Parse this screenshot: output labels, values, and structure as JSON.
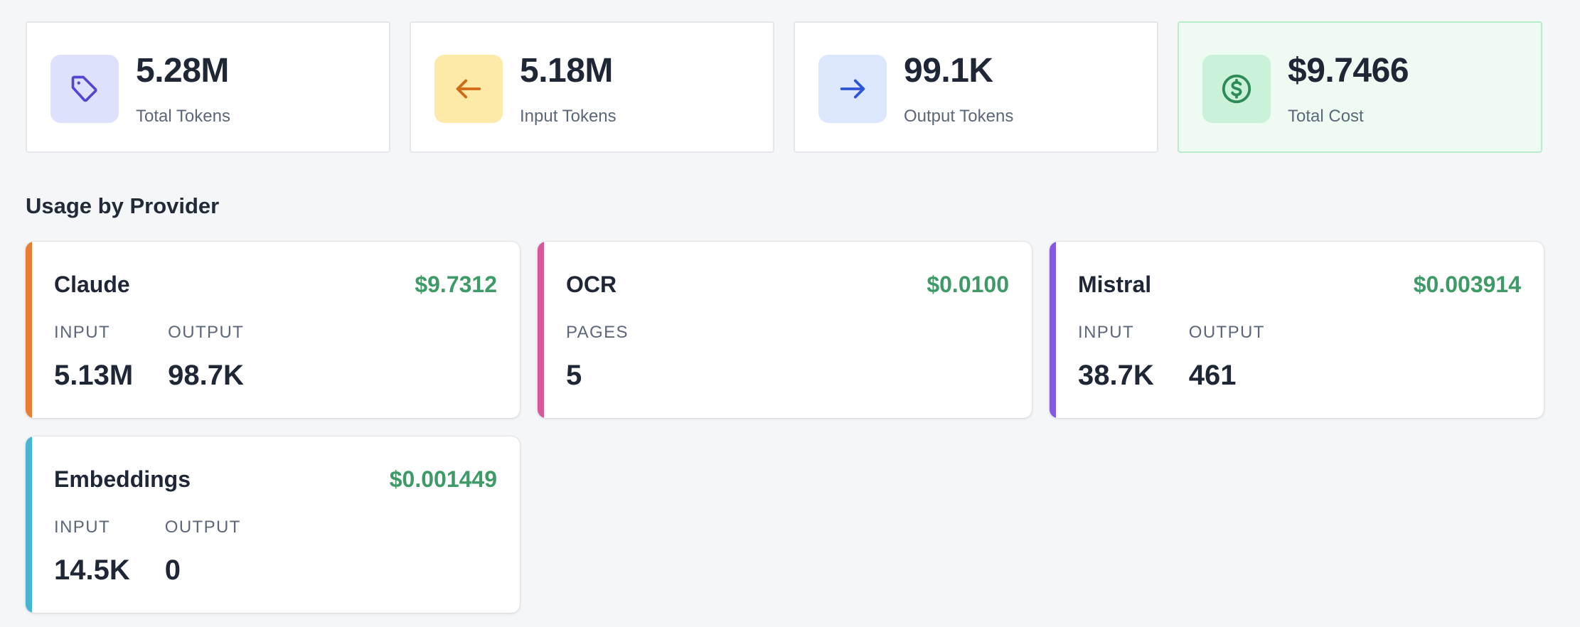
{
  "stats": [
    {
      "value": "5.28M",
      "label": "Total Tokens",
      "icon": "tag-icon",
      "icon_bg": "#dde1fb",
      "icon_color": "#5146cf"
    },
    {
      "value": "5.18M",
      "label": "Input Tokens",
      "icon": "arrow-left-icon",
      "icon_bg": "#fde9a8",
      "icon_color": "#d16a17"
    },
    {
      "value": "99.1K",
      "label": "Output Tokens",
      "icon": "arrow-right-icon",
      "icon_bg": "#dce7fd",
      "icon_color": "#2c56d6"
    },
    {
      "value": "$9.7466",
      "label": "Total Cost",
      "icon": "dollar-circle-icon",
      "icon_bg": "#c9f2d9",
      "icon_color": "#2e8b57"
    }
  ],
  "section_title": "Usage by Provider",
  "colors": {
    "cost_green": "#3e9a66",
    "accent_claude": "#ea7d32",
    "accent_ocr": "#d9579a",
    "accent_mistral": "#8458df",
    "accent_embeddings": "#46b6d2"
  },
  "providers": [
    {
      "name": "Claude",
      "cost": "$9.7312",
      "metrics": [
        {
          "label": "INPUT",
          "value": "5.13M"
        },
        {
          "label": "OUTPUT",
          "value": "98.7K"
        }
      ]
    },
    {
      "name": "OCR",
      "cost": "$0.0100",
      "metrics": [
        {
          "label": "PAGES",
          "value": "5"
        }
      ]
    },
    {
      "name": "Mistral",
      "cost": "$0.003914",
      "metrics": [
        {
          "label": "INPUT",
          "value": "38.7K"
        },
        {
          "label": "OUTPUT",
          "value": "461"
        }
      ]
    },
    {
      "name": "Embeddings",
      "cost": "$0.001449",
      "metrics": [
        {
          "label": "INPUT",
          "value": "14.5K"
        },
        {
          "label": "OUTPUT",
          "value": "0"
        }
      ]
    }
  ]
}
